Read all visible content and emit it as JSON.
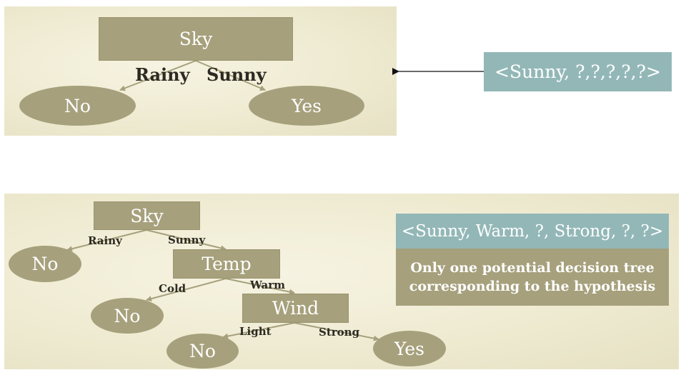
{
  "top_tree": {
    "root": "Sky",
    "edge_left": "Rainy",
    "edge_right": "Sunny",
    "leaf_left": "No",
    "leaf_right": "Yes"
  },
  "top_hypothesis": "<Sunny, ?,?,?,?,?>",
  "bottom_tree": {
    "root": "Sky",
    "root_edge_left": "Rainy",
    "root_edge_right": "Sunny",
    "root_leaf": "No",
    "temp": "Temp",
    "temp_edge_left": "Cold",
    "temp_edge_right": "Warm",
    "temp_leaf": "No",
    "wind": "Wind",
    "wind_edge_left": "Light",
    "wind_edge_right": "Strong",
    "wind_leaf_left": "No",
    "wind_leaf_right": "Yes"
  },
  "bottom_hypothesis": "<Sunny, Warm, ?, Strong, ?, ?>",
  "bottom_note": "Only one potential decision tree corresponding to the hypothesis",
  "colors": {
    "node_fill": "#a6a07c",
    "hypothesis_fill": "#93b7b7",
    "panel_fill": "#efebd2",
    "edge_stroke": "#a6a07c"
  }
}
